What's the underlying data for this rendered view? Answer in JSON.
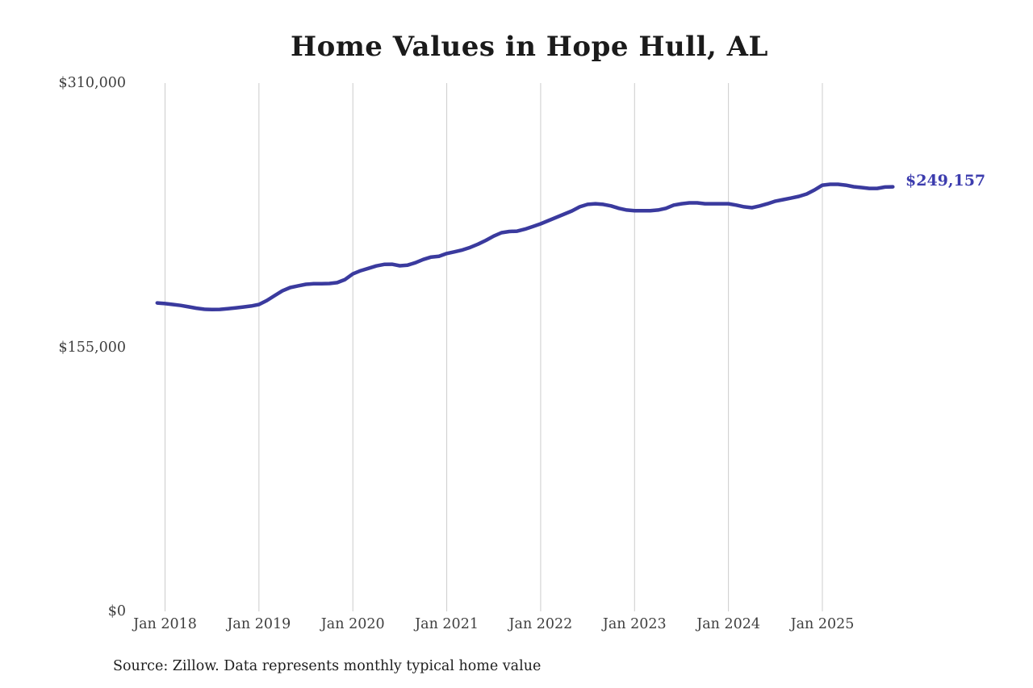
{
  "chart_data": {
    "type": "line",
    "title": "Home Values in Hope Hull, AL",
    "source_note": "Source: Zillow. Data represents monthly typical home value",
    "end_label": "$249,157",
    "latest_value": 249157,
    "line_color": "#3a3a9e",
    "end_label_color": "#3c3cae",
    "grid_color": "#cccccc",
    "axis_text_color": "#3f3f3f",
    "grid": "vertical-only",
    "legend_position": "none",
    "ylim": [
      0,
      310000
    ],
    "y_ticks": [
      {
        "label": "$310,000",
        "value": 310000
      },
      {
        "label": "$155,000",
        "value": 155000
      },
      {
        "label": "$0",
        "value": 0
      }
    ],
    "x_ticks": [
      {
        "label": "Jan 2018",
        "month": "2018-01"
      },
      {
        "label": "Jan 2019",
        "month": "2019-01"
      },
      {
        "label": "Jan 2020",
        "month": "2020-01"
      },
      {
        "label": "Jan 2021",
        "month": "2021-01"
      },
      {
        "label": "Jan 2022",
        "month": "2022-01"
      },
      {
        "label": "Jan 2023",
        "month": "2023-01"
      },
      {
        "label": "Jan 2024",
        "month": "2024-01"
      },
      {
        "label": "Jan 2025",
        "month": "2025-01"
      }
    ],
    "series": [
      {
        "name": "Monthly typical home value",
        "start_month": "2017-12",
        "end_month": "2025-10",
        "values": [
          181000,
          180600,
          180100,
          179500,
          178700,
          177900,
          177300,
          177100,
          177200,
          177600,
          178100,
          178600,
          179200,
          180100,
          182400,
          185300,
          188100,
          190000,
          191000,
          191900,
          192300,
          192300,
          192400,
          192900,
          194700,
          198000,
          199900,
          201300,
          202700,
          203600,
          203700,
          202800,
          203200,
          204600,
          206500,
          207900,
          208400,
          210000,
          211000,
          212100,
          213600,
          215500,
          217700,
          220200,
          222200,
          222900,
          223100,
          224300,
          225800,
          227400,
          229300,
          231200,
          233100,
          235000,
          237400,
          238800,
          239200,
          238800,
          237900,
          236500,
          235500,
          235100,
          235100,
          235100,
          235500,
          236500,
          238400,
          239200,
          239700,
          239700,
          239200,
          239200,
          239200,
          239200,
          238400,
          237400,
          236900,
          237900,
          239200,
          240700,
          241600,
          242500,
          243500,
          244900,
          247300,
          250100,
          250600,
          250600,
          250100,
          249200,
          248700,
          248200,
          248200,
          249000,
          249157
        ]
      }
    ]
  }
}
